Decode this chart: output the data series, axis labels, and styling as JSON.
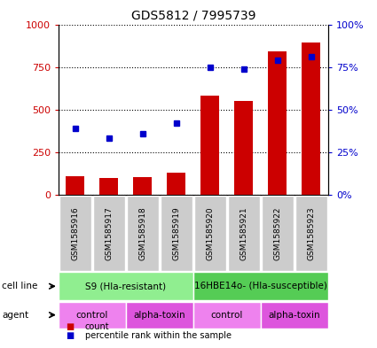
{
  "title": "GDS5812 / 7995739",
  "samples": [
    "GSM1585916",
    "GSM1585917",
    "GSM1585918",
    "GSM1585919",
    "GSM1585920",
    "GSM1585921",
    "GSM1585922",
    "GSM1585923"
  ],
  "counts": [
    110,
    100,
    105,
    130,
    580,
    550,
    840,
    895
  ],
  "percentiles": [
    39,
    33.5,
    36,
    42,
    75,
    74,
    79,
    81
  ],
  "bar_color": "#cc0000",
  "dot_color": "#0000cc",
  "ylim_left": [
    0,
    1000
  ],
  "ylim_right": [
    0,
    100
  ],
  "yticks_left": [
    0,
    250,
    500,
    750,
    1000
  ],
  "yticks_right": [
    0,
    25,
    50,
    75,
    100
  ],
  "ytick_labels_left": [
    "0",
    "250",
    "500",
    "750",
    "1000"
  ],
  "ytick_labels_right": [
    "0%",
    "25%",
    "50%",
    "75%",
    "100%"
  ],
  "cell_lines": [
    {
      "label": "S9 (Hla-resistant)",
      "start": 0,
      "end": 4,
      "color": "#90ee90"
    },
    {
      "label": "16HBE14o- (Hla-susceptible)",
      "start": 4,
      "end": 8,
      "color": "#55cc55"
    }
  ],
  "agents": [
    {
      "label": "control",
      "start": 0,
      "end": 2,
      "color": "#ee82ee"
    },
    {
      "label": "alpha-toxin",
      "start": 2,
      "end": 4,
      "color": "#dd55dd"
    },
    {
      "label": "control",
      "start": 4,
      "end": 6,
      "color": "#ee82ee"
    },
    {
      "label": "alpha-toxin",
      "start": 6,
      "end": 8,
      "color": "#dd55dd"
    }
  ],
  "legend_count_color": "#cc0000",
  "legend_percentile_color": "#0000cc",
  "sample_bg_color": "#cccccc",
  "bar_width": 0.55
}
